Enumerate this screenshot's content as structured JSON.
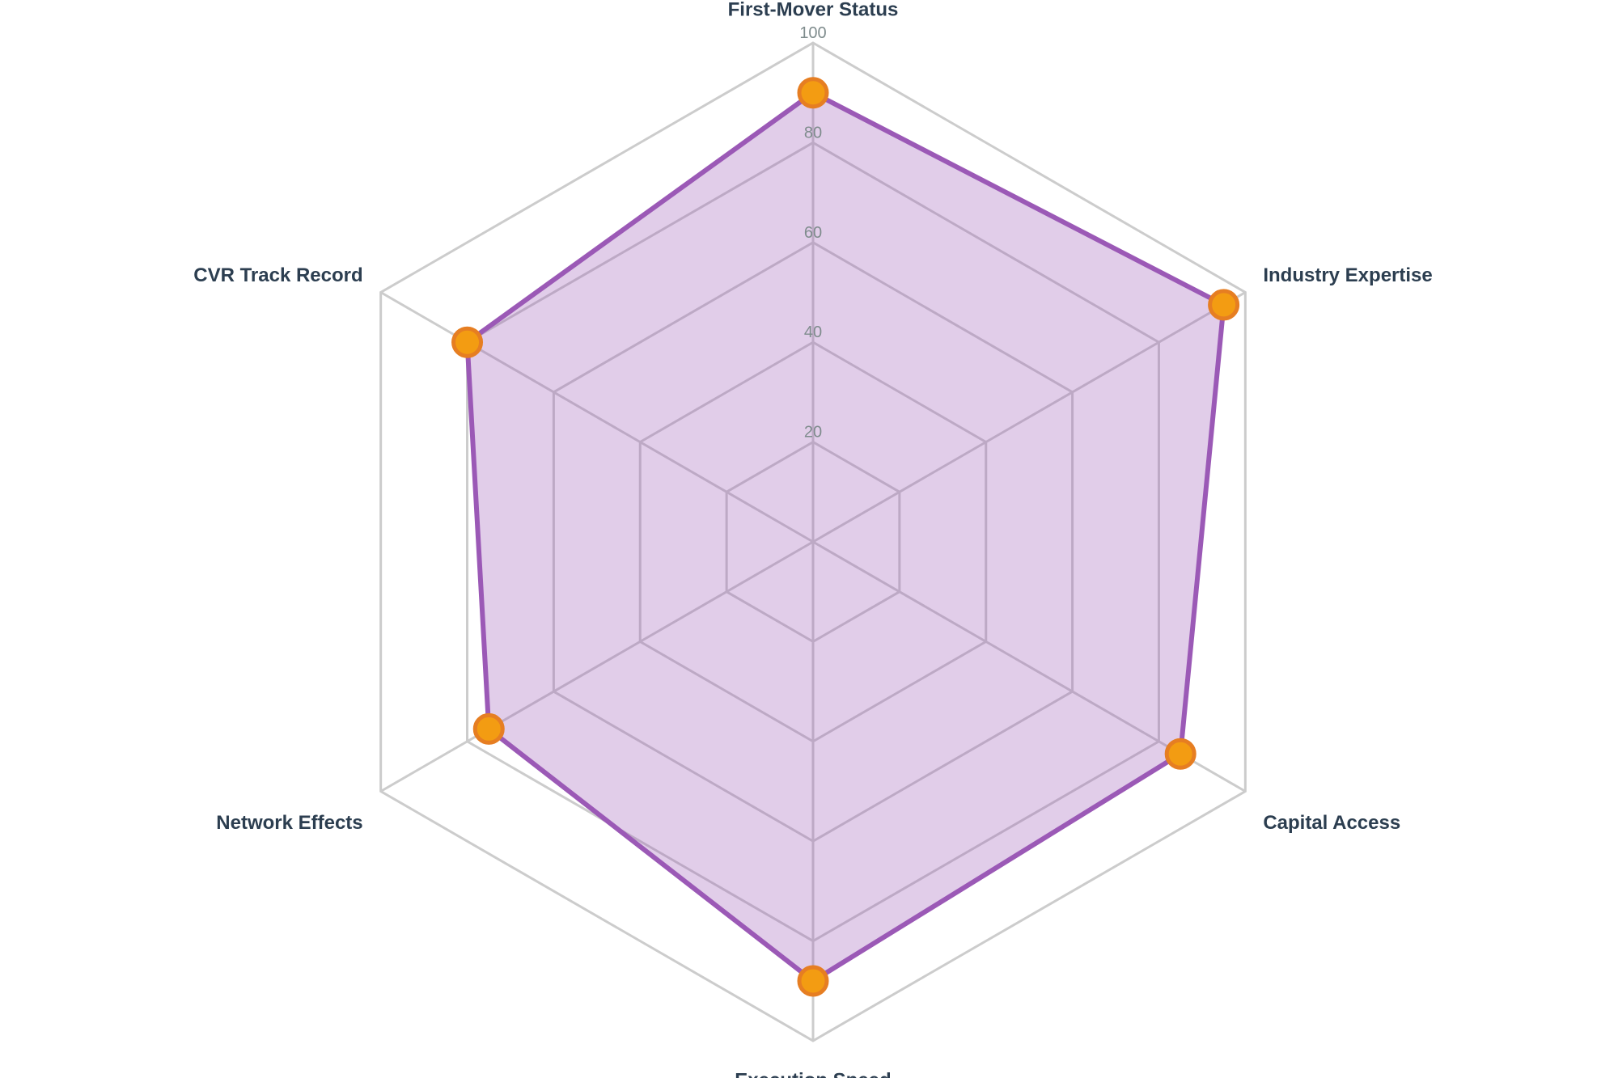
{
  "chart_data": {
    "type": "radar",
    "axes": [
      "First-Mover Status",
      "Industry Expertise",
      "Capital Access",
      "Execution Speed",
      "Network Effects",
      "CVR Track Record"
    ],
    "values": [
      90,
      95,
      85,
      88,
      75,
      80
    ],
    "rlim": [
      0,
      100
    ],
    "ticks": [
      20,
      40,
      60,
      80,
      100
    ],
    "grid": true,
    "legend": "none",
    "colors": {
      "line": "#9b59b6",
      "fill": "#9b59b6",
      "marker_fill": "#f39c12",
      "marker_stroke": "#e67e22",
      "grid": "#cccccc",
      "tick_text": "#7f8c8d",
      "label_text": "#2c3e50"
    }
  }
}
